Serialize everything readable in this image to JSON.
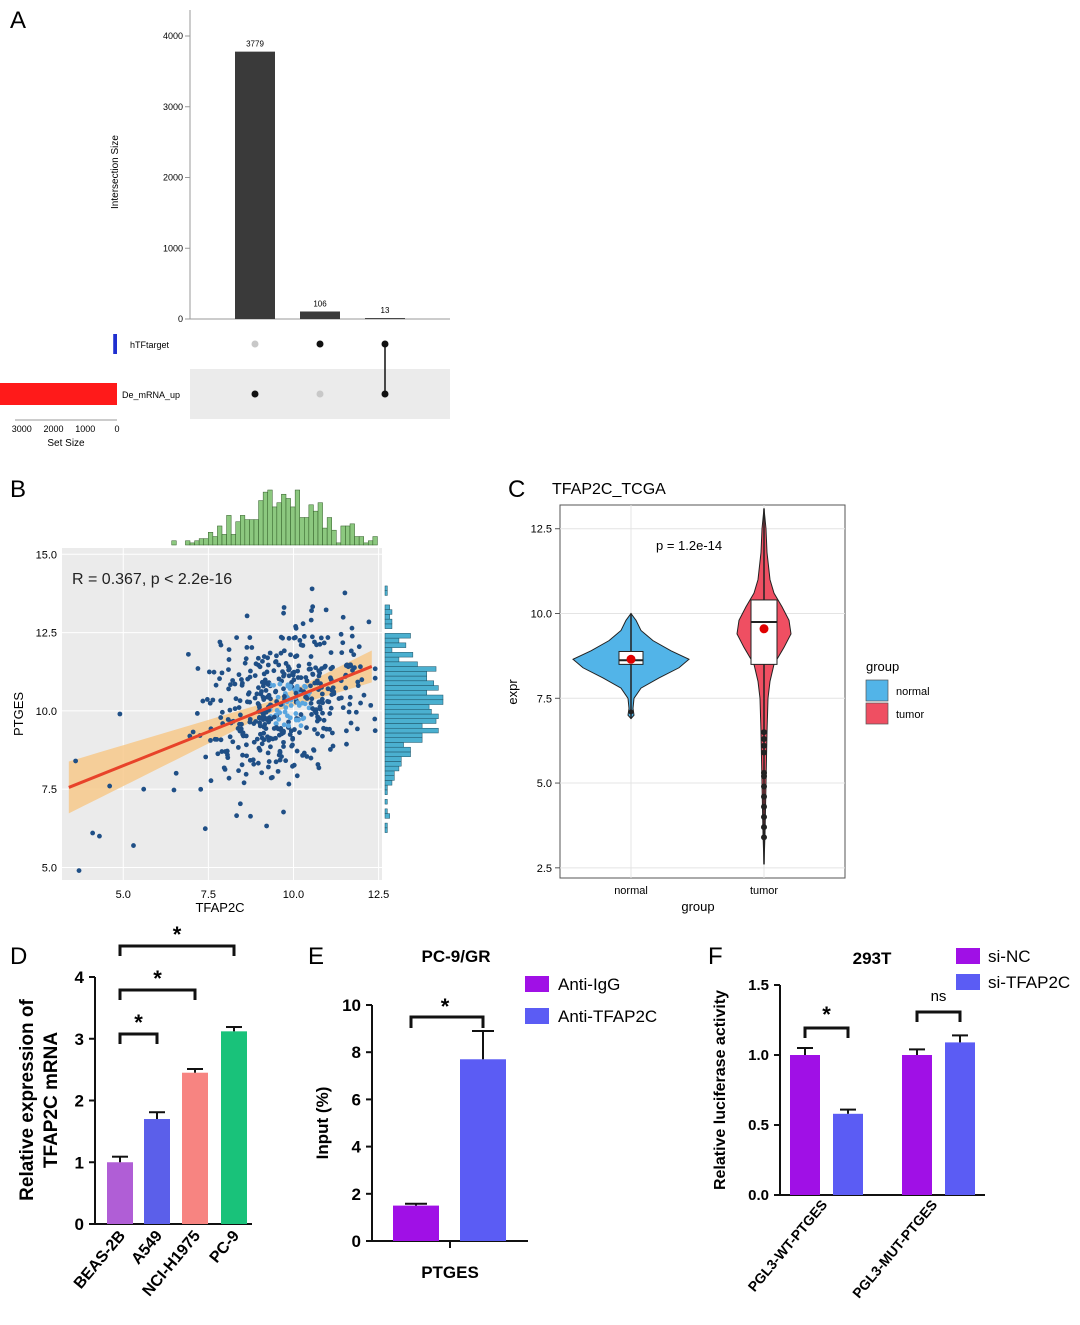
{
  "panels": {
    "A": "A",
    "B": "B",
    "C": "C",
    "D": "D",
    "E": "E",
    "F": "F"
  },
  "colors": {
    "upset_bar": "#3a3a3a",
    "htftarget_bar": "#1f2fd0",
    "de_mrna_bar": "#ff1a1a",
    "scatter_point": "#1f4f86",
    "scatter_bg": "#ebebeb",
    "reg_line": "#e8432a",
    "reg_band": "#f7c98b",
    "hist_top": "#8cc87f",
    "hist_right": "#4bb0d0",
    "normal": "#52b4e8",
    "tumor": "#ef4f62",
    "d_beas": "#b05ed6",
    "d_a549": "#5b5fea",
    "d_nci": "#f78481",
    "d_pc9": "#19c27a",
    "purple": "#a010e6",
    "blue": "#5b5cf4"
  },
  "chart_data": [
    {
      "id": "A",
      "type": "bar",
      "subtype": "upset",
      "ylabel": "Intersection Size",
      "yticks": [
        0,
        1000,
        2000,
        3000,
        4000
      ],
      "ylim": [
        0,
        4000
      ],
      "intersections": [
        {
          "value": 3779,
          "label": "3779",
          "sets": [
            "De_mRNA_up"
          ]
        },
        {
          "value": 106,
          "label": "106",
          "sets": [
            "hTFtarget"
          ]
        },
        {
          "value": 13,
          "label": "13",
          "sets": [
            "hTFtarget",
            "De_mRNA_up"
          ]
        }
      ],
      "sets": [
        {
          "name": "hTFtarget",
          "size": 119
        },
        {
          "name": "De_mRNA_up",
          "size": 3792
        }
      ],
      "set_axis": {
        "label": "Set Size",
        "ticks": [
          "3000",
          "2000",
          "1000",
          "0"
        ]
      }
    },
    {
      "id": "B",
      "type": "scatter",
      "annotation": "R = 0.367, p < 2.2e-16",
      "xlabel": "TFAP2C",
      "ylabel": "PTGES",
      "xlim": [
        3.2,
        12.6
      ],
      "ylim": [
        4.6,
        15.2
      ],
      "xticks": [
        "5.0",
        "7.5",
        "10.0",
        "12.5"
      ],
      "yticks": [
        "5.0",
        "7.5",
        "10.0",
        "12.5",
        "15.0"
      ],
      "regression": {
        "slope": 0.434,
        "intercept": 6.08,
        "x_range": [
          3.4,
          12.3
        ]
      }
    },
    {
      "id": "C",
      "type": "violin",
      "title": "TFAP2C_TCGA",
      "annotation": "p = 1.2e-14",
      "xlabel": "group",
      "ylabel": "expr",
      "categories": [
        "normal",
        "tumor"
      ],
      "ylim": [
        2.2,
        13.2
      ],
      "yticks": [
        "2.5",
        "5.0",
        "7.5",
        "10.0",
        "12.5"
      ],
      "legend": {
        "title": "group",
        "items": [
          "normal",
          "tumor"
        ]
      },
      "series": [
        {
          "name": "normal",
          "median": 8.62,
          "q1": 8.5,
          "q3": 8.88,
          "mean": 8.65,
          "min": 6.9,
          "max": 10.0
        },
        {
          "name": "tumor",
          "median": 9.75,
          "q1": 8.5,
          "q3": 10.4,
          "mean": 9.55,
          "min": 2.6,
          "max": 13.1,
          "outliers": [
            3.4,
            3.7,
            4.0,
            4.3,
            4.6,
            4.9,
            5.2,
            5.3,
            5.9,
            6.1,
            6.3,
            6.5
          ]
        }
      ]
    },
    {
      "id": "D",
      "type": "bar",
      "ylabel": "Relative expression of TFAP2C mRNA",
      "categories": [
        "BEAS-2B",
        "A549",
        "NCI-H1975",
        "PC-9"
      ],
      "values": [
        1.0,
        1.7,
        2.45,
        3.12
      ],
      "errors": [
        0.09,
        0.11,
        0.06,
        0.07
      ],
      "ylim": [
        0,
        4
      ],
      "yticks": [
        "0",
        "1",
        "2",
        "3",
        "4"
      ],
      "significance": [
        "*",
        "*",
        "*"
      ]
    },
    {
      "id": "E",
      "type": "bar",
      "title": "PC-9/GR",
      "ylabel": "Input (%)",
      "categories": [
        "PTGES"
      ],
      "series": [
        {
          "name": "Anti-IgG",
          "values": [
            1.5
          ],
          "errors": [
            0.08
          ]
        },
        {
          "name": "Anti-TFAP2C",
          "values": [
            7.7
          ],
          "errors": [
            1.2
          ]
        }
      ],
      "ylim": [
        0,
        10
      ],
      "yticks": [
        "0",
        "2",
        "4",
        "6",
        "8",
        "10"
      ],
      "significance": [
        "*"
      ]
    },
    {
      "id": "F",
      "type": "bar",
      "title": "293T",
      "ylabel": "Relative luciferase activity",
      "categories": [
        "PGL3-WT-PTGES",
        "PGL3-MUT-PTGES"
      ],
      "series": [
        {
          "name": "si-NC",
          "values": [
            1.0,
            1.0
          ],
          "errors": [
            0.05,
            0.04
          ]
        },
        {
          "name": "si-TFAP2C",
          "values": [
            0.58,
            1.09
          ],
          "errors": [
            0.03,
            0.05
          ]
        }
      ],
      "ylim": [
        0,
        1.5
      ],
      "yticks": [
        "0.0",
        "0.5",
        "1.0",
        "1.5"
      ],
      "significance": [
        "*",
        "ns"
      ]
    }
  ]
}
